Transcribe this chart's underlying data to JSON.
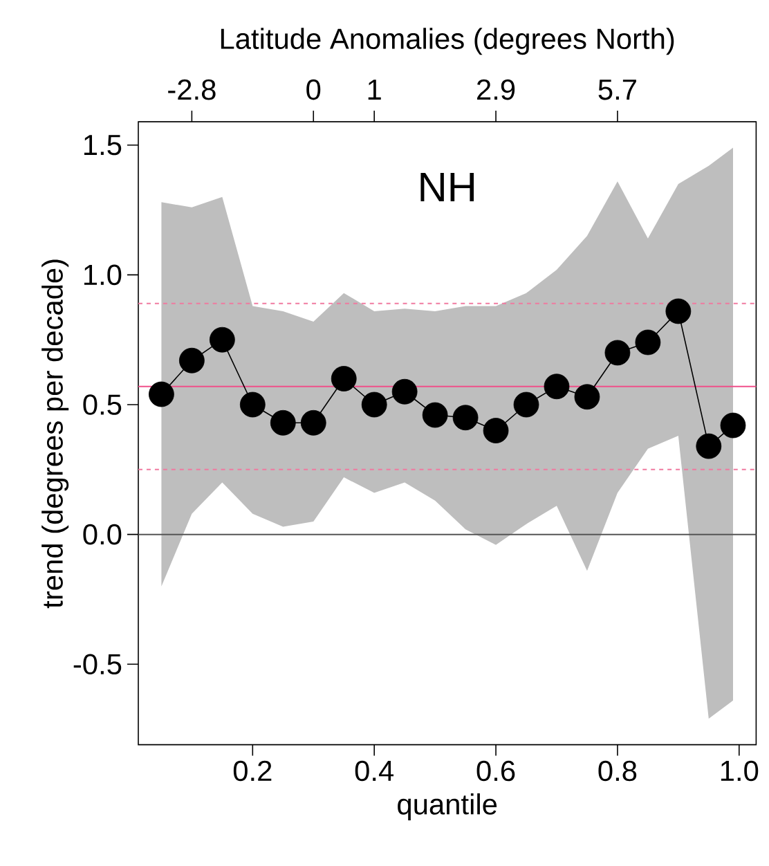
{
  "chart_data": {
    "type": "line",
    "xlabel": "quantile",
    "ylabel": "trend (degrees per decade)",
    "x2label": "Latitude Anomalies (degrees North)",
    "annotations": [
      "NH",
      {
        "text": "-2.8",
        "x": 0.1
      },
      {
        "text": "0",
        "x": 0.3
      },
      {
        "text": "1",
        "x": 0.4
      },
      {
        "text": "2.9",
        "x": 0.6
      },
      {
        "text": "5.7",
        "x": 0.8
      }
    ],
    "x": [
      0.05,
      0.1,
      0.15,
      0.2,
      0.25,
      0.3,
      0.35,
      0.4,
      0.45,
      0.5,
      0.55,
      0.6,
      0.65,
      0.7,
      0.75,
      0.8,
      0.85,
      0.9,
      0.95,
      0.99
    ],
    "series": [
      {
        "color": "#000000",
        "marker": "circle",
        "line_style": "solid",
        "values": [
          0.54,
          0.67,
          0.75,
          0.5,
          0.43,
          0.43,
          0.6,
          0.5,
          0.55,
          0.46,
          0.45,
          0.4,
          0.5,
          0.57,
          0.53,
          0.7,
          0.74,
          0.86,
          0.34,
          0.42
        ],
        "lower": [
          -0.2,
          0.08,
          0.2,
          0.08,
          0.03,
          0.05,
          0.22,
          0.16,
          0.2,
          0.13,
          0.02,
          -0.04,
          0.04,
          0.11,
          -0.14,
          0.16,
          0.33,
          0.38,
          -0.71,
          -0.64
        ],
        "upper": [
          1.28,
          1.26,
          1.3,
          0.88,
          0.86,
          0.82,
          0.93,
          0.86,
          0.87,
          0.86,
          0.88,
          0.88,
          0.93,
          1.02,
          1.15,
          1.36,
          1.14,
          1.35,
          1.42,
          1.49
        ]
      }
    ],
    "ref_lines": [
      {
        "axis": "y",
        "value": 0,
        "color": "#555555",
        "line_style": "solid"
      },
      {
        "axis": "y",
        "value": 0.57,
        "color": "#f0508a",
        "line_style": "solid"
      },
      {
        "axis": "y",
        "value": 0.89,
        "color": "#f07aa0",
        "line_style": "dashed"
      },
      {
        "axis": "y",
        "value": 0.25,
        "color": "#f07aa0",
        "line_style": "dashed"
      }
    ],
    "xlim": [
      0.012,
      1.028
    ],
    "ylim": [
      -0.81,
      1.59
    ],
    "xticks": [
      0.2,
      0.4,
      0.6,
      0.8,
      {
        "value": 1,
        "label": "1.0"
      }
    ],
    "yticks": [
      -0.5,
      {
        "value": 0,
        "label": "0.0"
      },
      0.5,
      {
        "value": 1,
        "label": "1.0"
      },
      1.5
    ],
    "grid": false
  }
}
